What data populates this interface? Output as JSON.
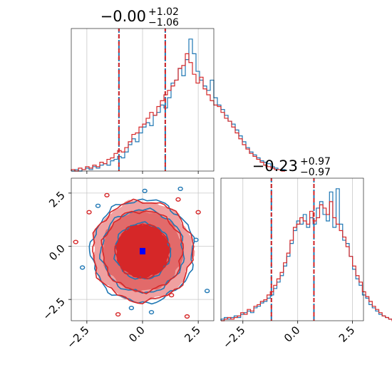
{
  "colors": {
    "blue": "#1f77b4",
    "red": "#d62728",
    "red_light": "#f0a0a0",
    "marker": "#0000ff",
    "grid": "#c8c8c8"
  },
  "chart_data": [
    {
      "type": "histogram",
      "panel": "top-left",
      "title_value": "−0.00",
      "title_upper": "+1.02",
      "title_lower": "−1.06",
      "xlim": [
        -3.2,
        3.2
      ],
      "grid": true,
      "quantile_lines": [
        -1.06,
        1.02
      ],
      "series": [
        {
          "color": "blue",
          "bin_start": -3.2,
          "bin_width": 0.16,
          "values": [
            0,
            1,
            0,
            1,
            2,
            1,
            3,
            2,
            4,
            5,
            4,
            7,
            8,
            10,
            9,
            13,
            18,
            22,
            20,
            26,
            30,
            33,
            31,
            38,
            40,
            45,
            43,
            50,
            60,
            62,
            70,
            65,
            76,
            90,
            80,
            68,
            62,
            58,
            55,
            62,
            50,
            45,
            42,
            38,
            34,
            32,
            28,
            24,
            20,
            16,
            13,
            11,
            9,
            7,
            6,
            5,
            3,
            2,
            1,
            1
          ]
        },
        {
          "color": "red",
          "bin_start": -3.2,
          "bin_width": 0.16,
          "values": [
            1,
            0,
            2,
            1,
            3,
            2,
            4,
            3,
            6,
            5,
            8,
            9,
            12,
            14,
            13,
            16,
            20,
            25,
            26,
            30,
            32,
            36,
            40,
            38,
            44,
            48,
            52,
            55,
            58,
            62,
            70,
            72,
            80,
            74,
            66,
            60,
            64,
            56,
            52,
            48,
            45,
            44,
            40,
            36,
            34,
            30,
            26,
            22,
            18,
            15,
            12,
            10,
            8,
            6,
            4,
            3,
            2,
            1,
            1,
            0
          ]
        }
      ]
    },
    {
      "type": "contour",
      "panel": "bottom-left",
      "xlim": [
        -3.2,
        3.2
      ],
      "ylim": [
        -3.5,
        3.2
      ],
      "xticks": [
        "−2.5",
        "0.0",
        "2.5"
      ],
      "yticks": [
        "2.5",
        "0.0",
        "−2.5"
      ],
      "grid": true,
      "marker": [
        0.0,
        -0.23
      ],
      "levels_blue": [
        1.25,
        1.85,
        2.3
      ],
      "levels_red": [
        1.2,
        1.8,
        2.25
      ]
    },
    {
      "type": "histogram",
      "panel": "bottom-right",
      "title_value": "−0.23",
      "title_upper": "+0.97",
      "title_lower": "−0.97",
      "xlim": [
        -3.5,
        3.0
      ],
      "xticks": [
        "−2.5",
        "0.0",
        "2.5"
      ],
      "grid": true,
      "quantile_lines": [
        -1.2,
        0.74
      ],
      "series": [
        {
          "color": "blue",
          "bin_start": -3.5,
          "bin_width": 0.15,
          "values": [
            1,
            2,
            1,
            2,
            3,
            2,
            4,
            5,
            6,
            5,
            8,
            9,
            11,
            12,
            14,
            16,
            20,
            24,
            28,
            34,
            40,
            48,
            56,
            62,
            60,
            66,
            58,
            64,
            60,
            70,
            74,
            66,
            62,
            80,
            58,
            82,
            60,
            50,
            48,
            40,
            32,
            26,
            22,
            16,
            14,
            10,
            8,
            6,
            4,
            3,
            2,
            1,
            1
          ]
        },
        {
          "color": "red",
          "bin_start": -3.5,
          "bin_width": 0.15,
          "values": [
            0,
            1,
            2,
            1,
            2,
            3,
            5,
            4,
            7,
            6,
            9,
            10,
            12,
            13,
            16,
            18,
            22,
            26,
            30,
            36,
            42,
            50,
            58,
            60,
            64,
            62,
            60,
            68,
            62,
            64,
            72,
            70,
            66,
            74,
            64,
            60,
            56,
            52,
            46,
            40,
            34,
            28,
            24,
            18,
            15,
            12,
            9,
            7,
            5,
            3,
            2,
            1,
            0
          ]
        }
      ]
    }
  ]
}
